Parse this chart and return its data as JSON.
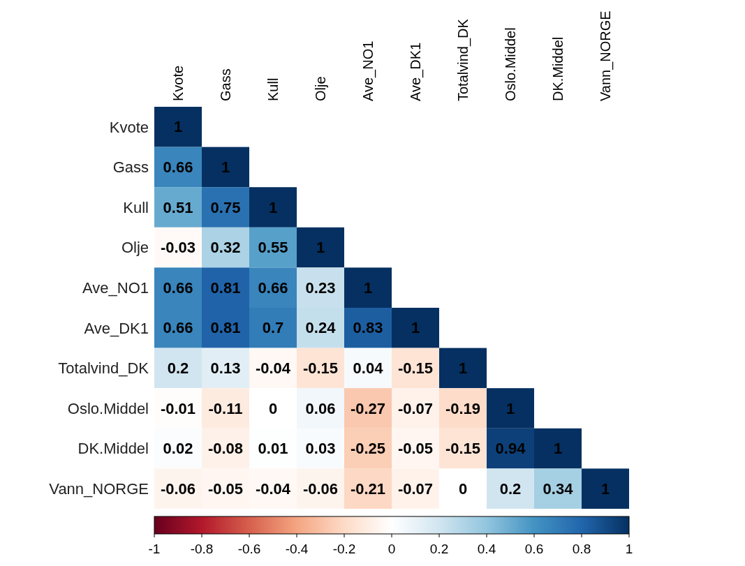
{
  "chart_data": {
    "type": "heatmap",
    "categories": [
      "Kvote",
      "Gass",
      "Kull",
      "Olje",
      "Ave_NO1",
      "Ave_DK1",
      "Totalvind_DK",
      "Oslo.Middel",
      "DK.Middel",
      "Vann_NORGE"
    ],
    "y_categories": [
      "Kvote",
      "Gass",
      "Kull",
      "Olje",
      "Ave_NO1",
      "Ave_DK1",
      "Totalvind_DK",
      "Oslo.Middel",
      "DK.Middel",
      "Vann_NORGE"
    ],
    "cells": [
      [
        1,
        null,
        null,
        null,
        null,
        null,
        null,
        null,
        null,
        null
      ],
      [
        0.66,
        1,
        null,
        null,
        null,
        null,
        null,
        null,
        null,
        null
      ],
      [
        0.51,
        0.75,
        1,
        null,
        null,
        null,
        null,
        null,
        null,
        null
      ],
      [
        -0.03,
        0.32,
        0.55,
        1,
        null,
        null,
        null,
        null,
        null,
        null
      ],
      [
        0.66,
        0.81,
        0.66,
        0.23,
        1,
        null,
        null,
        null,
        null,
        null
      ],
      [
        0.66,
        0.81,
        0.7,
        0.24,
        0.83,
        1,
        null,
        null,
        null,
        null
      ],
      [
        0.2,
        0.13,
        -0.04,
        -0.15,
        0.04,
        -0.15,
        1,
        null,
        null,
        null
      ],
      [
        -0.01,
        -0.11,
        0,
        0.06,
        -0.27,
        -0.07,
        -0.19,
        1,
        null,
        null
      ],
      [
        0.02,
        -0.08,
        0.01,
        0.03,
        -0.25,
        -0.05,
        -0.15,
        0.94,
        1,
        null
      ],
      [
        -0.06,
        -0.05,
        -0.04,
        -0.06,
        -0.21,
        -0.07,
        0,
        0.2,
        0.34,
        1
      ]
    ],
    "clim": [
      -1,
      1
    ],
    "cticks": [
      -1,
      -0.8,
      -0.6,
      -0.4,
      -0.2,
      0,
      0.2,
      0.4,
      0.6,
      0.8,
      1
    ],
    "data_labels": true
  }
}
